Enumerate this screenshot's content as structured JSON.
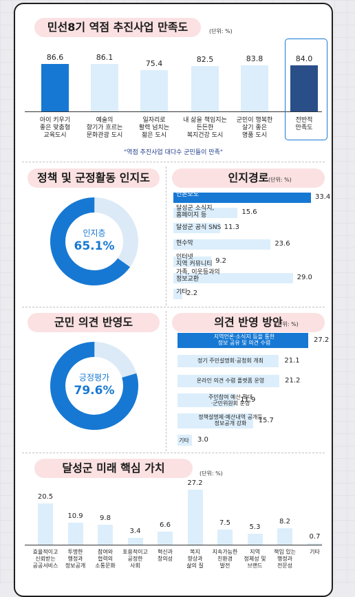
{
  "s1": {
    "title": "민선8기 역점 추진사업 만족도",
    "unit": "(단위: %)",
    "bars": [
      {
        "label": "아이 키우기\n좋은 맞춤형\n교육도시",
        "value": 86.6,
        "value_text": "86.6",
        "color": "#1678d3"
      },
      {
        "label": "예술의\n향기가 흐르는\n문화관광 도시",
        "value": 86.1,
        "value_text": "86.1",
        "color": "#dceefb"
      },
      {
        "label": "일자리로\n활력 넘치는\n젊은 도시",
        "value": 75.4,
        "value_text": "75.4",
        "color": "#dceefb"
      },
      {
        "label": "내 삶을 책임지는\n든든한\n복지건강 도시",
        "value": 82.5,
        "value_text": "82.5",
        "color": "#dceefb"
      },
      {
        "label": "군민이 행복한\n살기 좋은\n명품 도시",
        "value": 83.8,
        "value_text": "83.8",
        "color": "#dceefb"
      },
      {
        "label": "전반적\n만족도",
        "value": 84.0,
        "value_text": "84.0",
        "color": "#2a4e88"
      }
    ],
    "footnote": "\"역점 추진사업 대다수 군민들이 만족\""
  },
  "s2": {
    "title": "정책 및 군정활동 인지도",
    "donut_label": "인지층",
    "donut_value": "65.1%",
    "donut_pct": 65.1
  },
  "s3": {
    "title": "인지경로",
    "unit": "(단위: %)",
    "bars": [
      {
        "label": "언론보도",
        "value": 33.4,
        "value_text": "33.4"
      },
      {
        "label": "달성군 소식지,\n홈페이지 등",
        "value": 15.6,
        "value_text": "15.6"
      },
      {
        "label": "달성군 공식 SNS",
        "value": 11.3,
        "value_text": "11.3"
      },
      {
        "label": "현수막",
        "value": 23.6,
        "value_text": "23.6"
      },
      {
        "label": "인터넷\n지역 커뮤니티",
        "value": 9.2,
        "value_text": "9.2"
      },
      {
        "label": "가족, 이웃등과의\n정보교환",
        "value": 29.0,
        "value_text": "29.0"
      },
      {
        "label": "기타",
        "value": 2.2,
        "value_text": "2.2"
      }
    ]
  },
  "s4": {
    "title": "군민 의견 반영도",
    "donut_label": "긍정평가",
    "donut_value": "79.6%",
    "donut_pct": 79.6
  },
  "s5": {
    "title": "의견 반영 방안",
    "unit": "(단위: %)",
    "bars": [
      {
        "label": "지역언론·소식지 등을 통한\n정보 공유 및 의견 수렴",
        "value": 27.2,
        "value_text": "27.2"
      },
      {
        "label": "정기 주민설명회·공청회 개최",
        "value": 21.1,
        "value_text": "21.1"
      },
      {
        "label": "온라인 의견 수렴 플랫폼 운영",
        "value": 21.2,
        "value_text": "21.2"
      },
      {
        "label": "주민참여 예산 확대\n·군민위원회 운영",
        "value": 11.9,
        "value_text": "11.9"
      },
      {
        "label": "정책설명제·예산내역 공개등\n정보공개 강화",
        "value": 15.7,
        "value_text": "15.7"
      },
      {
        "label": "기타",
        "value": 3.0,
        "value_text": "3.0"
      }
    ]
  },
  "s6": {
    "title": "달성군 미래 핵심 가치",
    "unit": "(단위: %)",
    "bars": [
      {
        "label": "효율적이고\n신뢰받는\n공공서비스",
        "value": 20.5,
        "value_text": "20.5"
      },
      {
        "label": "투명한\n행정과\n정보공개",
        "value": 10.9,
        "value_text": "10.9"
      },
      {
        "label": "참여와\n협력의\n소통문화",
        "value": 9.8,
        "value_text": "9.8"
      },
      {
        "label": "포용적이고\n공정한\n사회",
        "value": 3.4,
        "value_text": "3.4"
      },
      {
        "label": "혁신과\n창의성",
        "value": 6.6,
        "value_text": "6.6"
      },
      {
        "label": "복지\n향상과\n삶의 질",
        "value": 27.2,
        "value_text": "27.2"
      },
      {
        "label": "지속가능한\n친환경\n발전",
        "value": 7.5,
        "value_text": "7.5"
      },
      {
        "label": "지역\n정체성 및\n브랜드",
        "value": 5.3,
        "value_text": "5.3"
      },
      {
        "label": "책임 있는\n행정과\n전문성",
        "value": 8.2,
        "value_text": "8.2"
      },
      {
        "label": "기타",
        "value": 0.7,
        "value_text": "0.7"
      }
    ]
  },
  "chart_data": [
    {
      "type": "bar",
      "title": "민선8기 역점 추진사업 만족도",
      "categories": [
        "아이 키우기 좋은 맞춤형 교육도시",
        "예술의 향기가 흐르는 문화관광 도시",
        "일자리로 활력 넘치는 젊은 도시",
        "내 삶을 책임지는 든든한 복지건강 도시",
        "군민이 행복한 살기 좋은 명품 도시",
        "전반적 만족도"
      ],
      "values": [
        86.6,
        86.1,
        75.4,
        82.5,
        83.8,
        84.0
      ]
    },
    {
      "type": "pie",
      "title": "정책 및 군정활동 인지도",
      "categories": [
        "인지층"
      ],
      "values": [
        65.1
      ]
    },
    {
      "type": "bar",
      "title": "인지경로",
      "categories": [
        "언론보도",
        "달성군 소식지, 홈페이지 등",
        "달성군 공식 SNS",
        "현수막",
        "인터넷 지역 커뮤니티",
        "가족, 이웃등과의 정보교환",
        "기타"
      ],
      "values": [
        33.4,
        15.6,
        11.3,
        23.6,
        9.2,
        29.0,
        2.2
      ]
    },
    {
      "type": "pie",
      "title": "군민 의견 반영도",
      "categories": [
        "긍정평가"
      ],
      "values": [
        79.6
      ]
    },
    {
      "type": "bar",
      "title": "의견 반영 방안",
      "categories": [
        "지역언론·소식지 등을 통한 정보 공유 및 의견 수렴",
        "정기 주민설명회·공청회 개최",
        "온라인 의견 수렴 플랫폼 운영",
        "주민참여 예산 확대·군민위원회 운영",
        "정책설명제·예산내역 공개등 정보공개 강화",
        "기타"
      ],
      "values": [
        27.2,
        21.1,
        21.2,
        11.9,
        15.7,
        3.0
      ]
    },
    {
      "type": "bar",
      "title": "달성군 미래 핵심 가치",
      "categories": [
        "효율적이고 신뢰받는 공공서비스",
        "투명한 행정과 정보공개",
        "참여와 협력의 소통문화",
        "포용적이고 공정한 사회",
        "혁신과 창의성",
        "복지 향상과 삶의 질",
        "지속가능한 친환경 발전",
        "지역 정체성 및 브랜드",
        "책임 있는 행정과 전문성",
        "기타"
      ],
      "values": [
        20.5,
        10.9,
        9.8,
        3.4,
        6.6,
        27.2,
        7.5,
        5.3,
        8.2,
        0.7
      ]
    }
  ]
}
